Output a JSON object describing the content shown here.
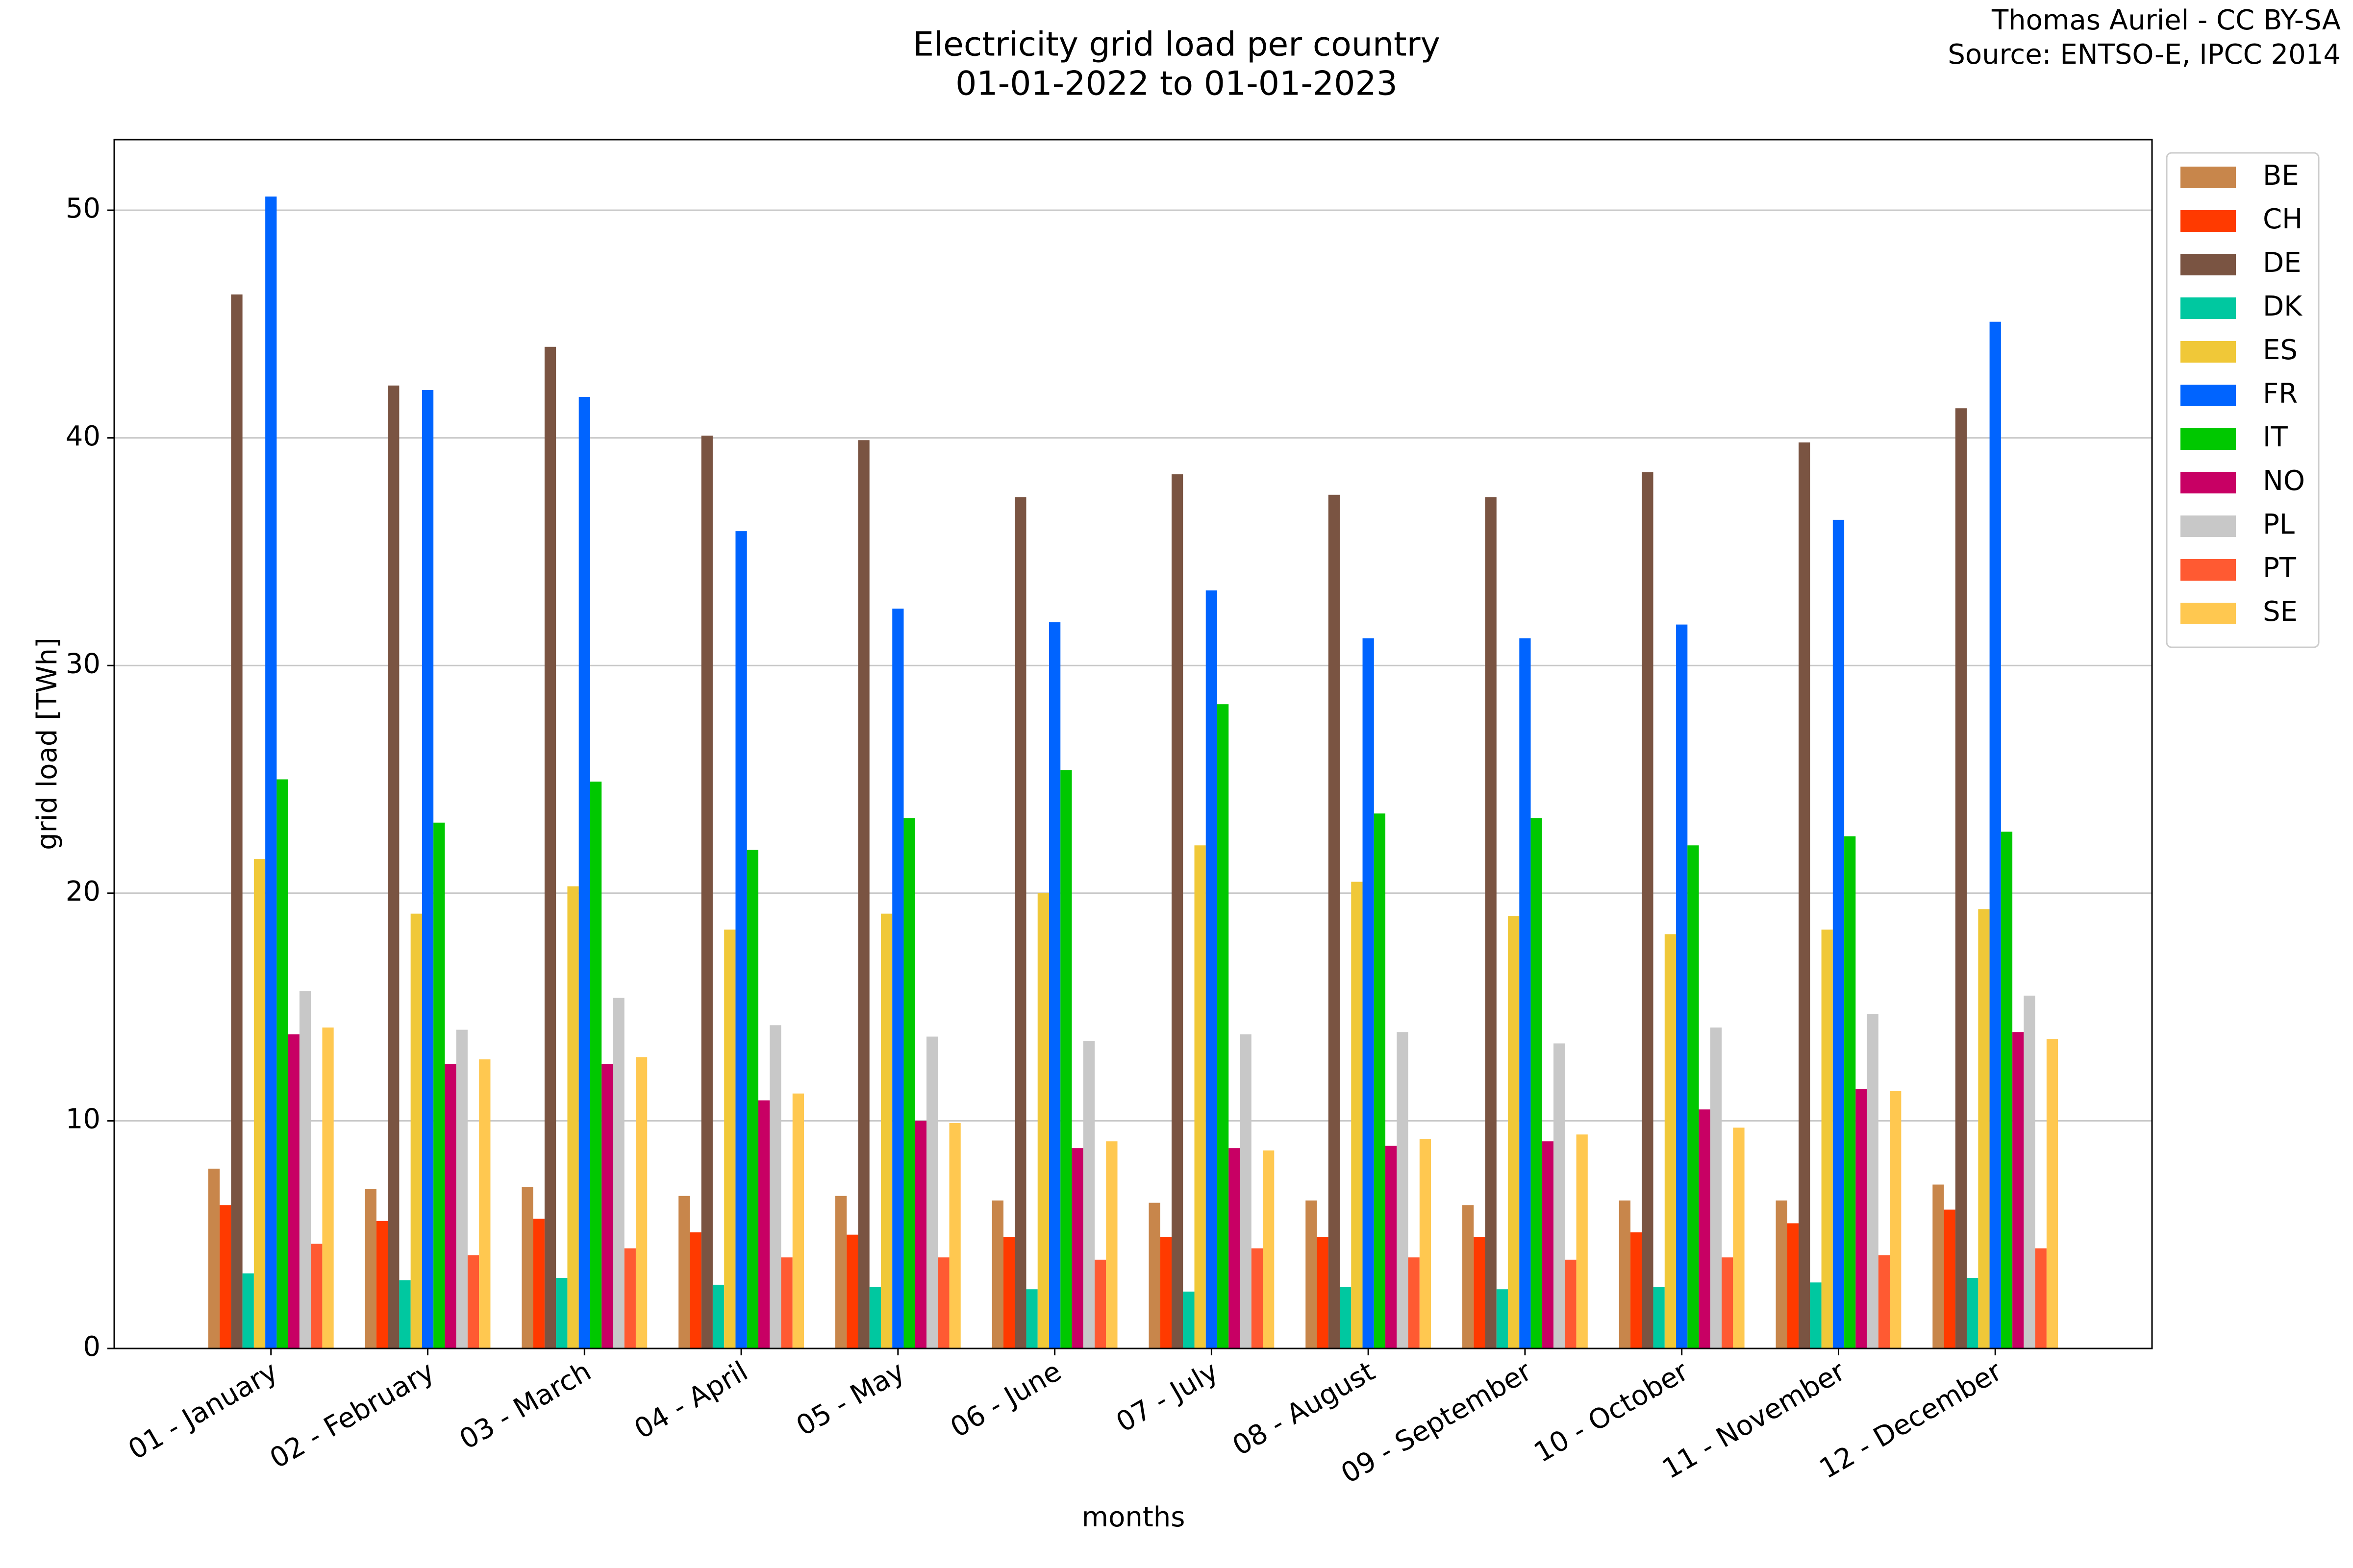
{
  "chart_data": {
    "type": "bar",
    "title": "Electricity grid load per country",
    "subtitle": "01-01-2022 to 01-01-2023",
    "annotations": [
      "Thomas Auriel - CC BY-SA",
      "Source: ENTSO-E, IPCC 2014"
    ],
    "x_label": "months",
    "y_label": "grid load [TWh]",
    "categories": [
      "01 - January",
      "02 - February",
      "03 - March",
      "04 - April",
      "05 - May",
      "06 - June",
      "07 - July",
      "08 - August",
      "09 - September",
      "10 - October",
      "11 - November",
      "12 - December"
    ],
    "ylim": [
      0,
      53.1
    ],
    "yticks": [
      0,
      10,
      20,
      30,
      40,
      50
    ],
    "grid": true,
    "legend": "right",
    "series": [
      {
        "name": "BE",
        "color": "#c8864b",
        "values": [
          7.9,
          7.0,
          7.1,
          6.7,
          6.7,
          6.5,
          6.4,
          6.5,
          6.3,
          6.5,
          6.5,
          7.2
        ]
      },
      {
        "name": "CH",
        "color": "#ff3a00",
        "values": [
          6.3,
          5.6,
          5.7,
          5.1,
          5.0,
          4.9,
          4.9,
          4.9,
          4.9,
          5.1,
          5.5,
          6.1
        ]
      },
      {
        "name": "DE",
        "color": "#7a5442",
        "values": [
          46.3,
          42.3,
          44.0,
          40.1,
          39.9,
          37.4,
          38.4,
          37.5,
          37.4,
          38.5,
          39.8,
          41.3
        ]
      },
      {
        "name": "DK",
        "color": "#00c8a0",
        "values": [
          3.3,
          3.0,
          3.1,
          2.8,
          2.7,
          2.6,
          2.5,
          2.7,
          2.6,
          2.7,
          2.9,
          3.1
        ]
      },
      {
        "name": "ES",
        "color": "#f0c838",
        "values": [
          21.5,
          19.1,
          20.3,
          18.4,
          19.1,
          20.0,
          22.1,
          20.5,
          19.0,
          18.2,
          18.4,
          19.3
        ]
      },
      {
        "name": "FR",
        "color": "#0064ff",
        "values": [
          50.6,
          42.1,
          41.8,
          35.9,
          32.5,
          31.9,
          33.3,
          31.2,
          31.2,
          31.8,
          36.4,
          45.1
        ]
      },
      {
        "name": "IT",
        "color": "#00c800",
        "values": [
          25.0,
          23.1,
          24.9,
          21.9,
          23.3,
          25.4,
          28.3,
          23.5,
          23.3,
          22.1,
          22.5,
          22.7
        ]
      },
      {
        "name": "NO",
        "color": "#c80064",
        "values": [
          13.8,
          12.5,
          12.5,
          10.9,
          10.0,
          8.8,
          8.8,
          8.9,
          9.1,
          10.5,
          11.4,
          13.9
        ]
      },
      {
        "name": "PL",
        "color": "#c8c8c8",
        "values": [
          15.7,
          14.0,
          15.4,
          14.2,
          13.7,
          13.5,
          13.8,
          13.9,
          13.4,
          14.1,
          14.7,
          15.5
        ]
      },
      {
        "name": "PT",
        "color": "#ff5a32",
        "values": [
          4.6,
          4.1,
          4.4,
          4.0,
          4.0,
          3.9,
          4.4,
          4.0,
          3.9,
          4.0,
          4.1,
          4.4
        ]
      },
      {
        "name": "SE",
        "color": "#ffc850",
        "values": [
          14.1,
          12.7,
          12.8,
          11.2,
          9.9,
          9.1,
          8.7,
          9.2,
          9.4,
          9.7,
          11.3,
          13.6
        ]
      }
    ]
  }
}
